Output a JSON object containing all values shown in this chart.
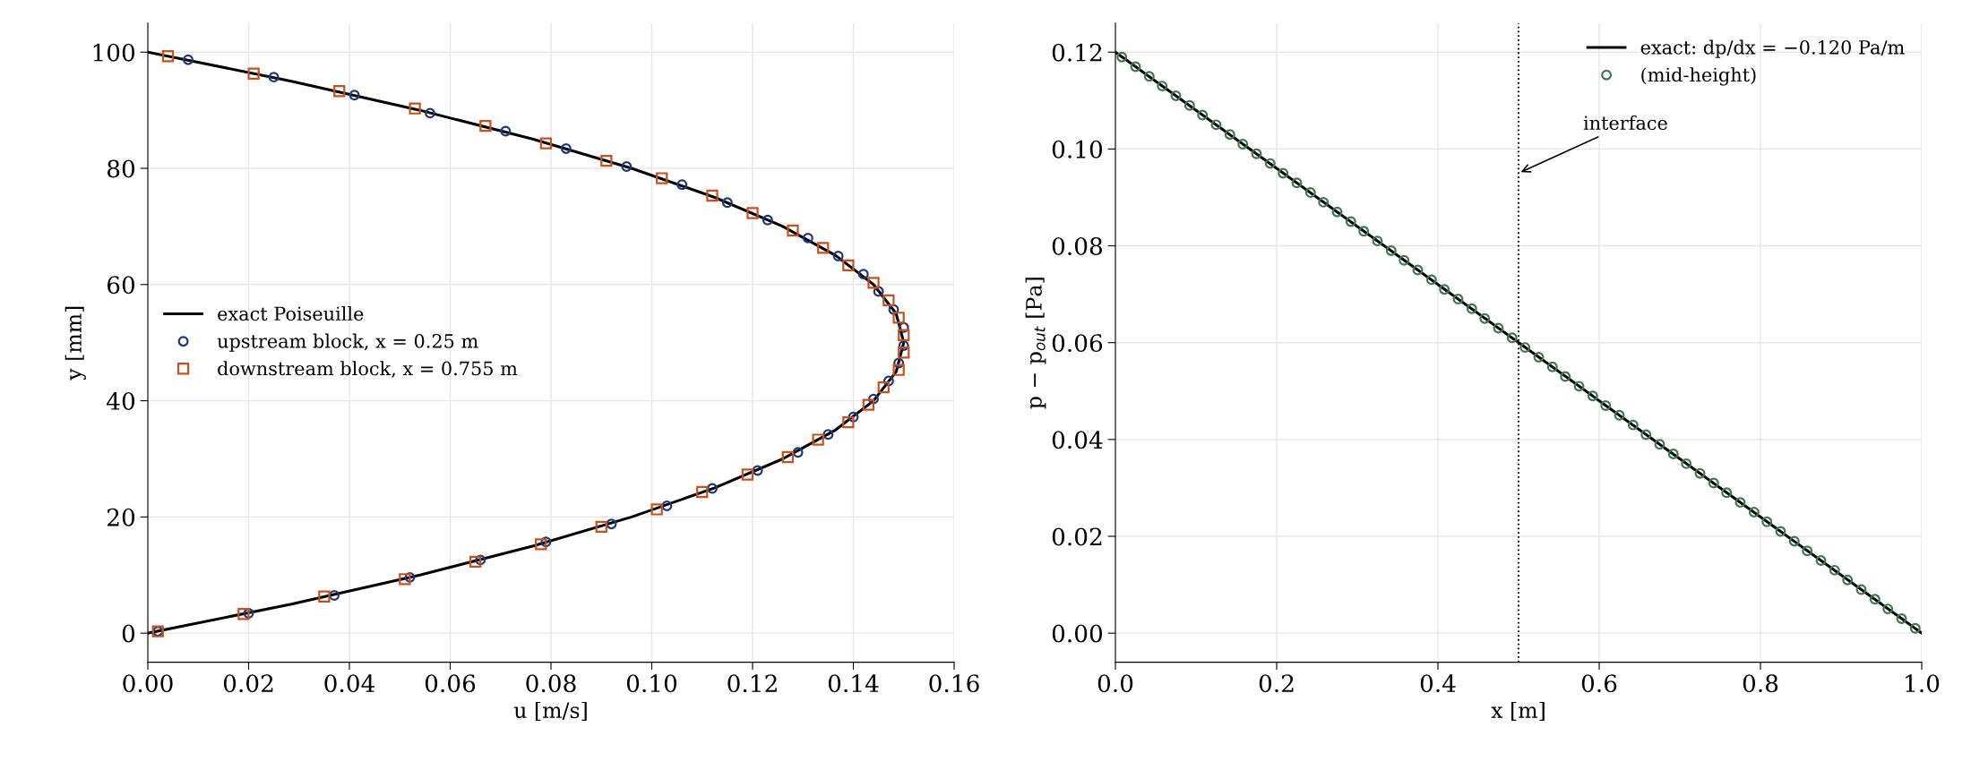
{
  "chart_data": [
    {
      "type": "line",
      "xlabel": "u [m/s]",
      "ylabel": "y [mm]",
      "xlim": [
        0,
        0.16
      ],
      "ylim": [
        -5,
        105
      ],
      "xticks": [
        {
          "value": 0,
          "label": "0.00"
        },
        {
          "value": 0.02,
          "label": "0.02"
        },
        {
          "value": 0.04,
          "label": "0.04"
        },
        {
          "value": 0.06,
          "label": "0.06"
        },
        {
          "value": 0.08,
          "label": "0.08"
        },
        {
          "value": 0.1,
          "label": "0.10"
        },
        {
          "value": 0.12,
          "label": "0.12"
        },
        {
          "value": 0.14,
          "label": "0.14"
        },
        {
          "value": 0.16,
          "label": "0.16"
        }
      ],
      "yticks": [
        0,
        20,
        40,
        60,
        80,
        100
      ],
      "grid": true,
      "legend": "center left",
      "series": [
        {
          "name": "exact Poiseuille",
          "color": "#000000",
          "marker": "none",
          "line_style": "solid",
          "x": [
            0,
            0.0285,
            0.054,
            0.0765,
            0.096,
            0.1125,
            0.126,
            0.1365,
            0.144,
            0.1485,
            0.15,
            0.1485,
            0.144,
            0.1365,
            0.126,
            0.1125,
            0.096,
            0.0765,
            0.054,
            0.0285,
            0
          ],
          "values": [
            0,
            5,
            10,
            15,
            20,
            25,
            30,
            35,
            40,
            45,
            50,
            55,
            60,
            65,
            70,
            75,
            80,
            85,
            90,
            95,
            100
          ]
        },
        {
          "name": "upstream block, x = 0.25 m",
          "type": "scatter",
          "color": "#1f3a7a",
          "marker": "circle",
          "x": [
            0.002,
            0.02,
            0.037,
            0.052,
            0.066,
            0.079,
            0.092,
            0.103,
            0.112,
            0.121,
            0.129,
            0.135,
            0.14,
            0.144,
            0.147,
            0.149,
            0.15,
            0.15,
            0.148,
            0.145,
            0.142,
            0.137,
            0.131,
            0.123,
            0.115,
            0.106,
            0.095,
            0.083,
            0.071,
            0.056,
            0.041,
            0.025,
            0.008
          ],
          "values": [
            0.3,
            3.4,
            6.5,
            9.6,
            12.6,
            15.7,
            18.8,
            21.9,
            24.9,
            28.0,
            31.1,
            34.2,
            37.2,
            40.3,
            43.4,
            46.5,
            49.5,
            52.6,
            55.7,
            58.8,
            61.8,
            64.9,
            68.0,
            71.1,
            74.1,
            77.2,
            80.3,
            83.4,
            86.4,
            89.5,
            92.6,
            95.7,
            98.7
          ]
        },
        {
          "name": "downstream block, x = 0.755 m",
          "type": "scatter",
          "color": "#c8501e",
          "marker": "square",
          "x": [
            0.002,
            0.019,
            0.035,
            0.051,
            0.065,
            0.078,
            0.09,
            0.101,
            0.11,
            0.119,
            0.127,
            0.133,
            0.139,
            0.143,
            0.146,
            0.149,
            0.15,
            0.15,
            0.149,
            0.147,
            0.144,
            0.139,
            0.134,
            0.128,
            0.12,
            0.112,
            0.102,
            0.091,
            0.079,
            0.067,
            0.053,
            0.038,
            0.021,
            0.004
          ],
          "values": [
            0.3,
            3.3,
            6.3,
            9.3,
            12.3,
            15.3,
            18.3,
            21.3,
            24.3,
            27.3,
            30.3,
            33.3,
            36.3,
            39.3,
            42.3,
            45.3,
            48.3,
            51.3,
            54.3,
            57.3,
            60.3,
            63.3,
            66.3,
            69.3,
            72.3,
            75.3,
            78.3,
            81.3,
            84.3,
            87.3,
            90.3,
            93.3,
            96.3,
            99.3
          ]
        }
      ]
    },
    {
      "type": "line",
      "xlabel": "x [m]",
      "ylabel": "p − p$_{out}$ [Pa]",
      "xlim": [
        0,
        1
      ],
      "ylim": [
        -0.006,
        0.126
      ],
      "xticks": [
        {
          "value": 0,
          "label": "0.0"
        },
        {
          "value": 0.2,
          "label": "0.2"
        },
        {
          "value": 0.4,
          "label": "0.4"
        },
        {
          "value": 0.6,
          "label": "0.6"
        },
        {
          "value": 0.8,
          "label": "0.8"
        },
        {
          "value": 1,
          "label": "1.0"
        }
      ],
      "yticks": [
        {
          "value": 0,
          "label": "0.00"
        },
        {
          "value": 0.02,
          "label": "0.02"
        },
        {
          "value": 0.04,
          "label": "0.04"
        },
        {
          "value": 0.06,
          "label": "0.06"
        },
        {
          "value": 0.08,
          "label": "0.08"
        },
        {
          "value": 0.1,
          "label": "0.10"
        },
        {
          "value": 0.12,
          "label": "0.12"
        }
      ],
      "grid": true,
      "legend": "upper right",
      "ref_lines": [
        {
          "axis": "x",
          "value": 0.5,
          "color": "#000000",
          "line_style": "dotted"
        }
      ],
      "annotations": [
        {
          "text": "interface",
          "x": 0.5,
          "y": 0.095
        }
      ],
      "series": [
        {
          "name": "exact: dp/dx = −0.120 Pa/m",
          "color": "#000000",
          "marker": "none",
          "line_style": "solid",
          "x": [
            0,
            1
          ],
          "values": [
            0.12,
            0
          ]
        },
        {
          "name": "(mid-height)",
          "type": "scatter",
          "color": "#3f7a4f",
          "marker": "circle",
          "x": [
            0.008,
            0.025,
            0.042,
            0.058,
            0.075,
            0.092,
            0.108,
            0.125,
            0.142,
            0.158,
            0.175,
            0.192,
            0.208,
            0.225,
            0.242,
            0.258,
            0.275,
            0.292,
            0.308,
            0.325,
            0.342,
            0.358,
            0.375,
            0.392,
            0.408,
            0.425,
            0.442,
            0.458,
            0.475,
            0.492,
            0.508,
            0.525,
            0.542,
            0.558,
            0.575,
            0.592,
            0.608,
            0.625,
            0.642,
            0.658,
            0.675,
            0.692,
            0.708,
            0.725,
            0.742,
            0.758,
            0.775,
            0.792,
            0.808,
            0.825,
            0.842,
            0.858,
            0.875,
            0.892,
            0.908,
            0.925,
            0.942,
            0.958,
            0.975,
            0.992
          ],
          "values": [
            0.119,
            0.117,
            0.115,
            0.113,
            0.111,
            0.109,
            0.107,
            0.105,
            0.103,
            0.101,
            0.099,
            0.097,
            0.095,
            0.093,
            0.091,
            0.089,
            0.087,
            0.085,
            0.083,
            0.081,
            0.079,
            0.077,
            0.075,
            0.073,
            0.071,
            0.069,
            0.067,
            0.065,
            0.063,
            0.061,
            0.059,
            0.057,
            0.055,
            0.053,
            0.051,
            0.049,
            0.047,
            0.045,
            0.043,
            0.041,
            0.039,
            0.037,
            0.035,
            0.033,
            0.031,
            0.029,
            0.027,
            0.025,
            0.023,
            0.021,
            0.019,
            0.017,
            0.015,
            0.013,
            0.011,
            0.009,
            0.007,
            0.005,
            0.003,
            0.001
          ]
        }
      ]
    }
  ]
}
